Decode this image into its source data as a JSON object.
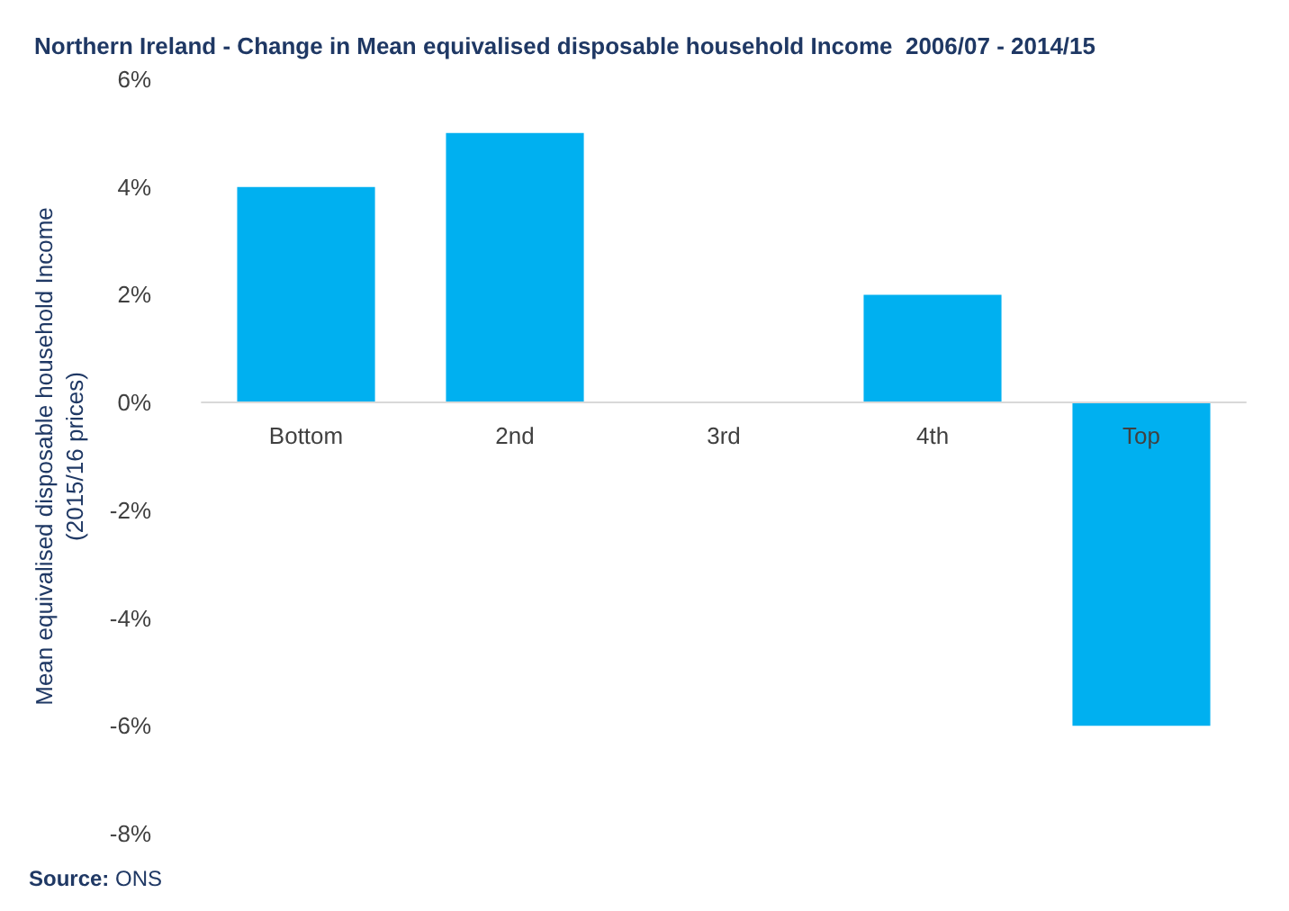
{
  "chart_data": {
    "type": "bar",
    "title": "Northern Ireland - Change in Mean equivalised disposable household Income  2006/07 - 2014/15",
    "ylabel": "Mean equivalised disposable household Income\n(2015/16 prices)",
    "categories": [
      "Bottom",
      "2nd",
      "3rd",
      "4th",
      "Top"
    ],
    "values": [
      4,
      5,
      0,
      2,
      -6
    ],
    "color": "#00b0f0",
    "ylim": [
      -8,
      6
    ],
    "yticks": [
      {
        "value": -8,
        "label": "-8%"
      },
      {
        "value": -6,
        "label": "-6%"
      },
      {
        "value": -4,
        "label": "-4%"
      },
      {
        "value": -2,
        "label": "-2%"
      },
      {
        "value": 0,
        "label": "0%"
      },
      {
        "value": 2,
        "label": "2%"
      },
      {
        "value": 4,
        "label": "4%"
      },
      {
        "value": 6,
        "label": "6%"
      }
    ],
    "grid": false,
    "annotations": [
      "Source: ONS"
    ]
  }
}
